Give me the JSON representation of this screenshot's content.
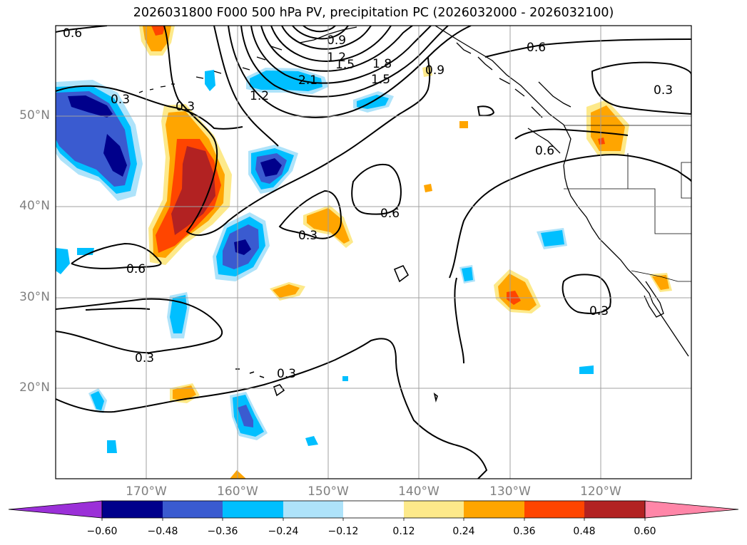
{
  "title": "2026031800 F000 500 hPa PV, precipitation PC (2026032000 - 2026032100)",
  "lat_labels": [
    "50°N",
    "40°N",
    "30°N",
    "20°N"
  ],
  "lon_labels": [
    "170°W",
    "160°W",
    "150°W",
    "140°W",
    "130°W",
    "120°W"
  ],
  "contour_labels": [
    "0.6",
    "0.3",
    "0.9",
    "1.2",
    "1.5",
    "1.8",
    "1.5",
    "2.1",
    "1.2",
    "0.9",
    "0.6",
    "0.3",
    "0.6",
    "0.3",
    "0.6",
    "0.6",
    "0.3",
    "0.3",
    "0.3",
    "0.3"
  ],
  "colorbar": {
    "tick_labels": [
      "−0.60",
      "−0.48",
      "−0.36",
      "−0.24",
      "−0.12",
      "0.12",
      "0.24",
      "0.36",
      "0.48",
      "0.60"
    ],
    "colors": [
      "#9b30d8",
      "#00008b",
      "#3a5bd0",
      "#00bfff",
      "#aee3fa",
      "#ffffff",
      "#fde98a",
      "#ffa500",
      "#ff4500",
      "#b22222",
      "#ff86a8"
    ]
  }
}
